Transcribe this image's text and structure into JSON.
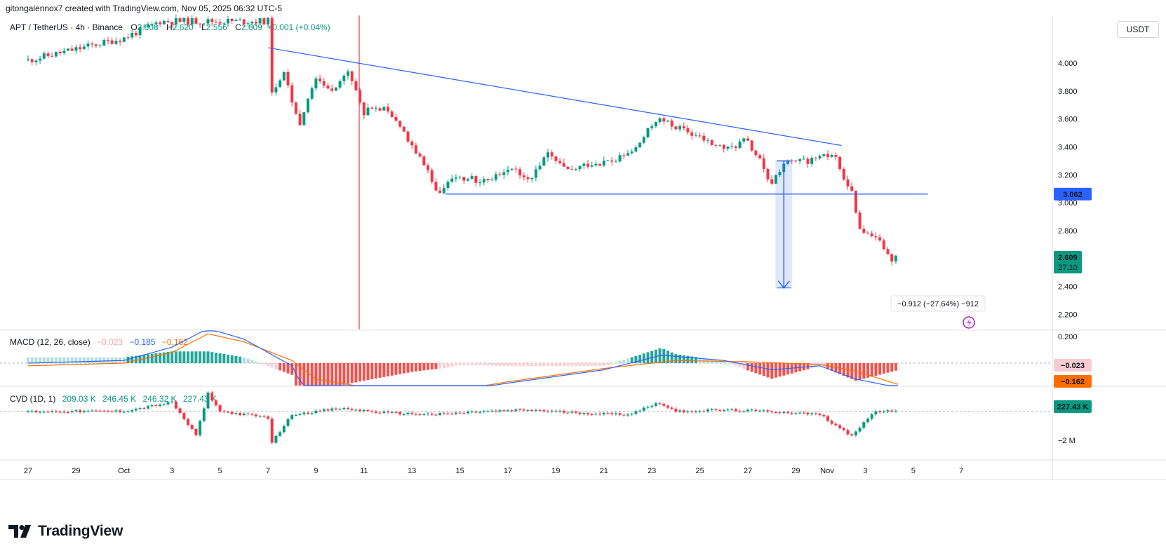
{
  "header": {
    "attribution": "gitongalennox7 created with TradingView.com, Nov 05, 2025 06:32 UTC-5"
  },
  "legend": {
    "symbol": "APT / TetherUS · 4h · Binance",
    "open_label": "O",
    "open": "2.608",
    "high_label": "H",
    "high": "2.620",
    "low_label": "L",
    "low": "2.556",
    "close_label": "C",
    "close": "2.609",
    "change": "+0.001 (+0.04%)"
  },
  "currency_button": "USDT",
  "macd_legend": {
    "title": "MACD (12, 26, close)",
    "hist": "−0.023",
    "macd": "−0.185",
    "signal": "−0.162"
  },
  "cvd_legend": {
    "title": "CVD (1D, 1)",
    "v1": "209.03 K",
    "v2": "246.45 K",
    "v3": "246.32 K",
    "v4": "227.43 K"
  },
  "measure_label": "−0.912 (−27.64%) −912",
  "price_badges": {
    "level": "3.062",
    "last": "2.609",
    "countdown": "27:10",
    "macd_hist": "−0.023",
    "macd_signal": "−0.162",
    "cvd": "227.43 K"
  },
  "footer": {
    "brand": "TradingView"
  },
  "colors": {
    "up": "#089981",
    "down": "#f23645",
    "macd_line": "#2962ff",
    "signal_line": "#ff6d00",
    "trend_line": "#2962ff"
  },
  "chart_data": [
    {
      "type": "candlestick",
      "ylim": [
        2.1,
        4.35
      ],
      "y_ticks": [
        "4.000",
        "3.800",
        "3.600",
        "3.400",
        "3.200",
        "3.000",
        "2.800",
        "2.600",
        "2.400",
        "2.200"
      ],
      "x_ticks": [
        "27",
        "29",
        "Oct",
        "3",
        "5",
        "7",
        "9",
        "11",
        "13",
        "15",
        "17",
        "19",
        "21",
        "23",
        "25",
        "27",
        "29",
        "Nov",
        "3",
        "5",
        "7"
      ],
      "anchors": [
        [
          0,
          4.02
        ],
        [
          2,
          4.1
        ],
        [
          4,
          4.18
        ],
        [
          5.5,
          4.3
        ],
        [
          7,
          4.3
        ],
        [
          10,
          4.3
        ],
        [
          10.1,
          3.7
        ],
        [
          10.6,
          3.95
        ],
        [
          11.3,
          3.56
        ],
        [
          12,
          3.9
        ],
        [
          12.6,
          3.8
        ],
        [
          13.3,
          3.95
        ],
        [
          14,
          3.65
        ],
        [
          14.8,
          3.68
        ],
        [
          15.7,
          3.5
        ],
        [
          16.4,
          3.3
        ],
        [
          17.2,
          3.05
        ],
        [
          17.6,
          3.2
        ],
        [
          19,
          3.15
        ],
        [
          20,
          3.25
        ],
        [
          21,
          3.18
        ],
        [
          21.6,
          3.35
        ],
        [
          22.5,
          3.22
        ],
        [
          23.4,
          3.28
        ],
        [
          24.5,
          3.3
        ],
        [
          25.3,
          3.38
        ],
        [
          26.2,
          3.6
        ],
        [
          26.9,
          3.55
        ],
        [
          27.8,
          3.48
        ],
        [
          28.5,
          3.42
        ],
        [
          29.2,
          3.38
        ],
        [
          29.9,
          3.45
        ],
        [
          30.5,
          3.3
        ],
        [
          30.9,
          3.12
        ],
        [
          31.5,
          3.28
        ],
        [
          32.4,
          3.3
        ],
        [
          33.1,
          3.32
        ],
        [
          33.6,
          3.35
        ],
        [
          33.9,
          3.22
        ],
        [
          34.3,
          3.1
        ],
        [
          34.6,
          2.82
        ],
        [
          35.0,
          2.8
        ],
        [
          35.5,
          2.75
        ],
        [
          35.9,
          2.6
        ],
        [
          36.3,
          2.6
        ]
      ],
      "trendlines": [
        {
          "from": [
            10,
            4.11
          ],
          "to": [
            33.9,
            3.41
          ]
        },
        {
          "from": [
            17.4,
            3.062
          ],
          "to": [
            37.5,
            3.062
          ]
        }
      ],
      "measure": {
        "x": [
          34.6,
          35.3
        ],
        "from": 3.3,
        "to": 2.39
      },
      "dates_per_day": 6
    },
    {
      "type": "line",
      "name": "MACD",
      "ylim": [
        -0.3,
        0.3
      ],
      "y_ticks": [
        "0.200",
        "0.000"
      ],
      "macd": [
        [
          0,
          0.0
        ],
        [
          4,
          0.02
        ],
        [
          6,
          0.12
        ],
        [
          7.5,
          0.26
        ],
        [
          9,
          0.18
        ],
        [
          11,
          -0.02
        ],
        [
          11.5,
          -0.2
        ],
        [
          12.5,
          -0.22
        ],
        [
          14,
          -0.24
        ],
        [
          16,
          -0.25
        ],
        [
          17.5,
          -0.22
        ],
        [
          20,
          -0.15
        ],
        [
          24,
          -0.05
        ],
        [
          26.4,
          0.06
        ],
        [
          29,
          0.02
        ],
        [
          31,
          -0.05
        ],
        [
          33,
          -0.02
        ],
        [
          34.5,
          -0.12
        ],
        [
          36.3,
          -0.185
        ]
      ],
      "signal": [
        [
          0,
          -0.02
        ],
        [
          4,
          0.0
        ],
        [
          6,
          0.08
        ],
        [
          7.5,
          0.22
        ],
        [
          9,
          0.16
        ],
        [
          11,
          0.02
        ],
        [
          12,
          -0.12
        ],
        [
          14,
          -0.18
        ],
        [
          16,
          -0.22
        ],
        [
          18,
          -0.2
        ],
        [
          20,
          -0.14
        ],
        [
          24,
          -0.04
        ],
        [
          27,
          0.02
        ],
        [
          30,
          0.01
        ],
        [
          33,
          -0.01
        ],
        [
          34.5,
          -0.06
        ],
        [
          36.3,
          -0.162
        ]
      ]
    },
    {
      "type": "bar",
      "name": "CVD",
      "y_ticks": [
        "−2 M"
      ],
      "anchors": [
        [
          0,
          0.0
        ],
        [
          4,
          0.02
        ],
        [
          6,
          0.6
        ],
        [
          7,
          -1.6
        ],
        [
          7.5,
          1.2
        ],
        [
          8,
          0.0
        ],
        [
          10,
          -0.4
        ],
        [
          10.1,
          -2.2
        ],
        [
          11,
          -0.2
        ],
        [
          13,
          0.2
        ],
        [
          15,
          -0.1
        ],
        [
          17,
          -0.2
        ],
        [
          19,
          0.0
        ],
        [
          21,
          0.1
        ],
        [
          23,
          -0.1
        ],
        [
          25,
          -0.2
        ],
        [
          26.3,
          0.6
        ],
        [
          27,
          0.0
        ],
        [
          29,
          0.1
        ],
        [
          31,
          0.0
        ],
        [
          33,
          -0.2
        ],
        [
          34.3,
          -1.6
        ],
        [
          35.3,
          0.0
        ],
        [
          36.2,
          0.0
        ]
      ]
    }
  ]
}
